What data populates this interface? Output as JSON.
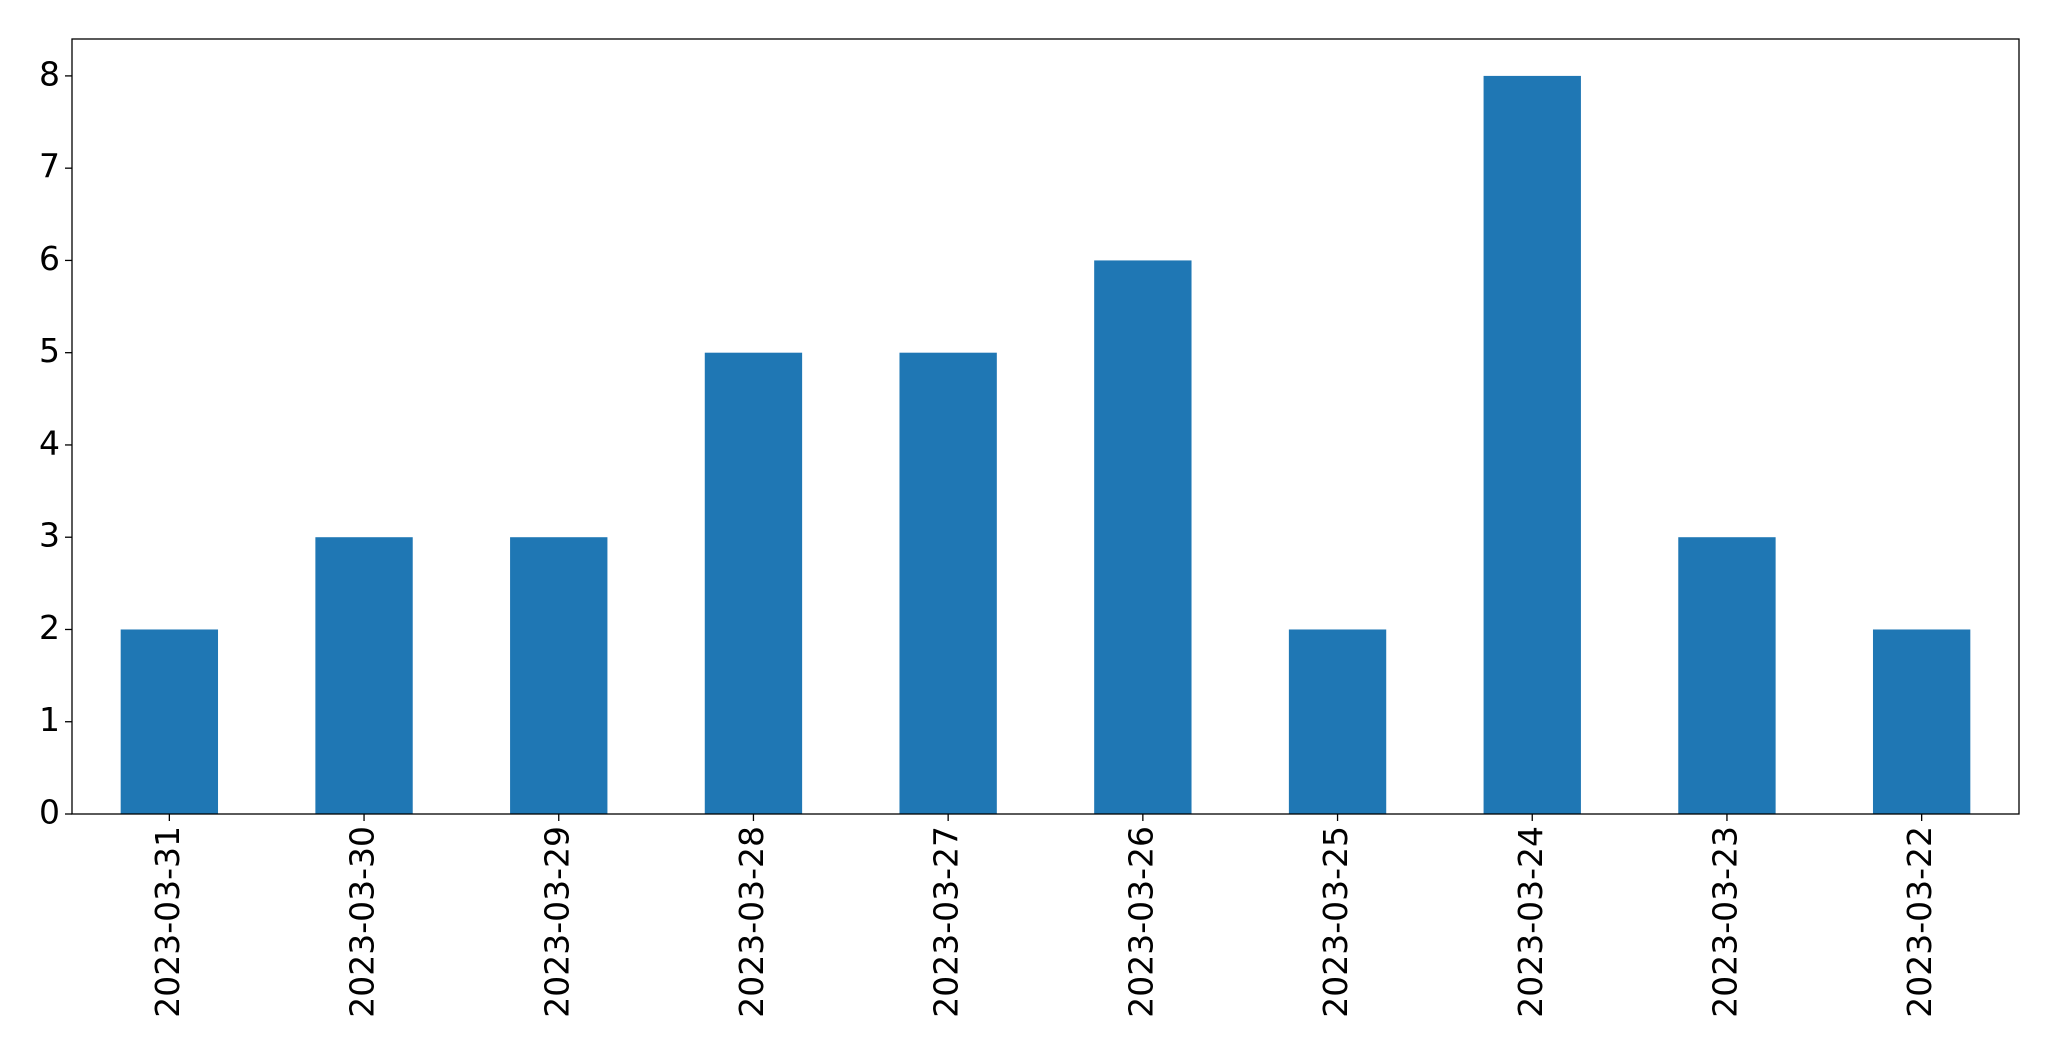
{
  "chart_data": {
    "type": "bar",
    "categories": [
      "2023-03-31",
      "2023-03-30",
      "2023-03-29",
      "2023-03-28",
      "2023-03-27",
      "2023-03-26",
      "2023-03-25",
      "2023-03-24",
      "2023-03-23",
      "2023-03-22"
    ],
    "values": [
      2,
      3,
      3,
      5,
      5,
      6,
      2,
      8,
      3,
      2
    ],
    "color": "#1f77b4",
    "ylim": [
      0,
      8.4
    ],
    "yticks": [
      0,
      1,
      2,
      3,
      4,
      5,
      6,
      7,
      8
    ],
    "grid": false
  }
}
